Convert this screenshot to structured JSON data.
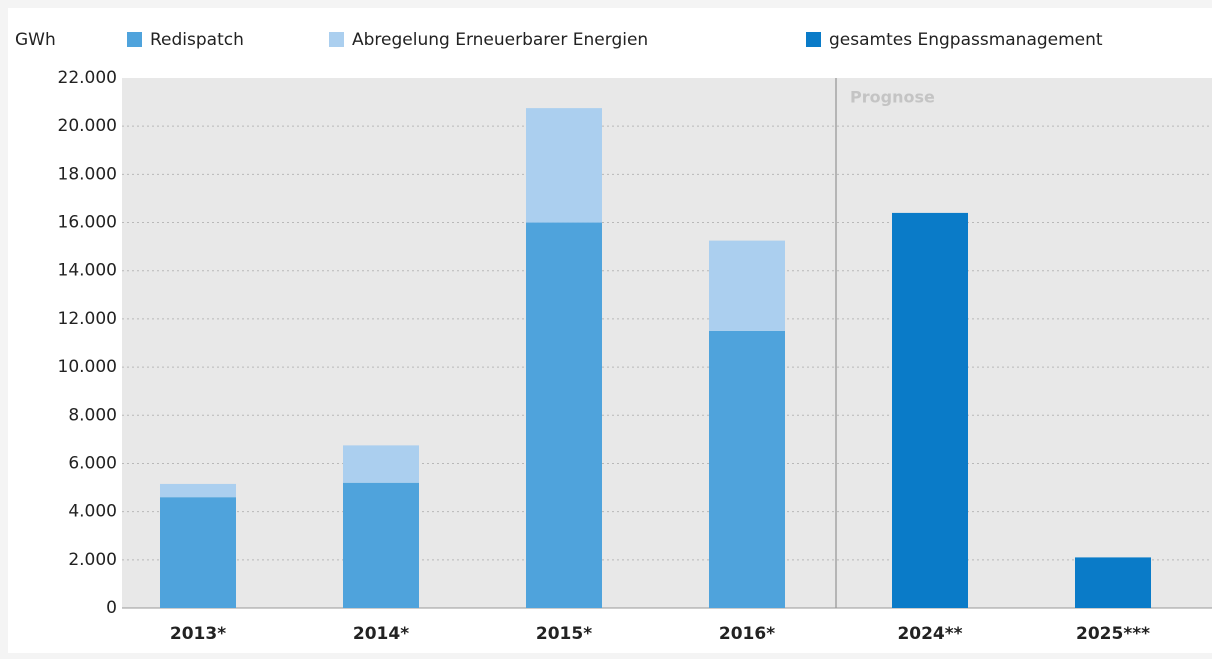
{
  "chart_data": {
    "type": "bar",
    "stacked": true,
    "y_axis_label": "GWh",
    "annotation": "Prognose",
    "categories": [
      "2013*",
      "2014*",
      "2015*",
      "2016*",
      "2024**",
      "2025***"
    ],
    "series": [
      {
        "name": "Redispatch",
        "color": "#4fa3dc",
        "values": [
          4600,
          5200,
          16000,
          11500,
          null,
          null
        ]
      },
      {
        "name": "Abregelung Erneuerbarer Energien",
        "color": "#abcfef",
        "values": [
          550,
          1550,
          4750,
          3750,
          null,
          null
        ]
      },
      {
        "name": "gesamtes Engpassmanagement",
        "color": "#0a7bc8",
        "values": [
          null,
          null,
          null,
          null,
          16400,
          2100
        ]
      }
    ],
    "ylim": [
      0,
      22000
    ],
    "yticks": [
      0,
      {
        "value": 2000,
        "label": "2.000"
      },
      {
        "value": 4000,
        "label": "4.000"
      },
      {
        "value": 6000,
        "label": "6.000"
      },
      {
        "value": 8000,
        "label": "8.000"
      },
      {
        "value": 10000,
        "label": "10.000"
      },
      {
        "value": 12000,
        "label": "12.000"
      },
      {
        "value": 14000,
        "label": "14.000"
      },
      {
        "value": 16000,
        "label": "16.000"
      },
      {
        "value": 18000,
        "label": "18.000"
      },
      {
        "value": 20000,
        "label": "20.000"
      },
      {
        "value": 22000,
        "label": "22.000"
      }
    ],
    "grid": true
  }
}
